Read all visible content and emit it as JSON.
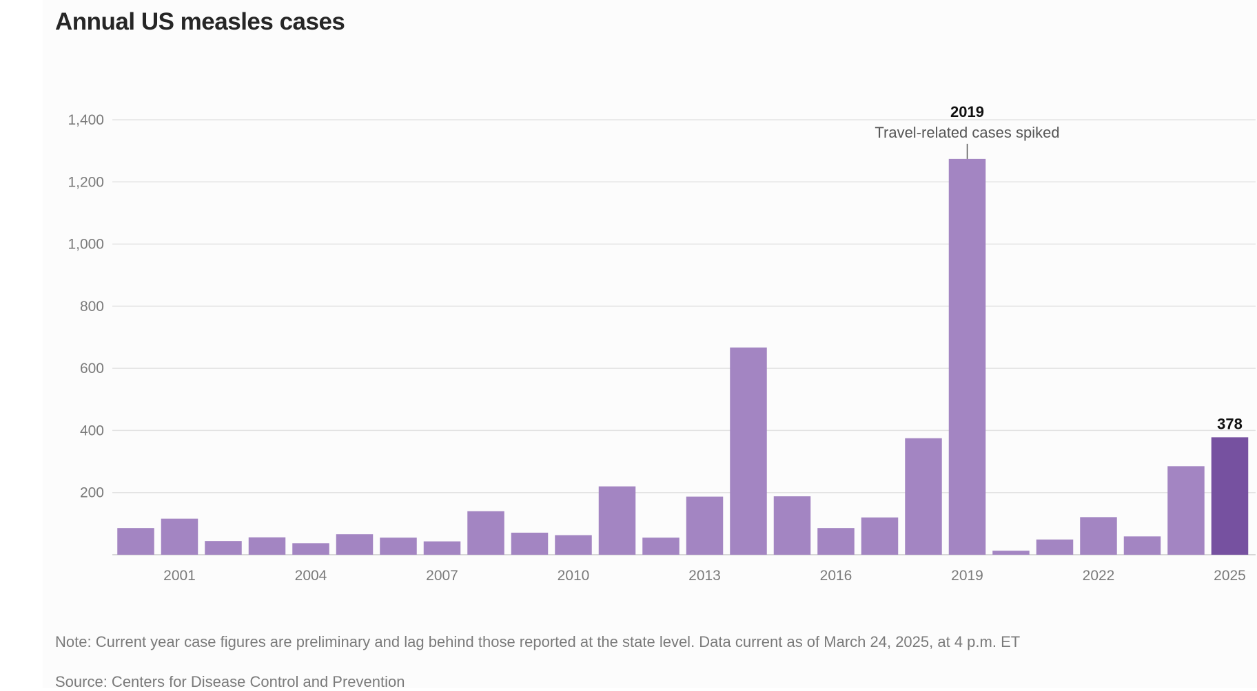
{
  "chart_data": {
    "type": "bar",
    "title": "Annual US measles cases",
    "categories": [
      "2000",
      "2001",
      "2002",
      "2003",
      "2004",
      "2005",
      "2006",
      "2007",
      "2008",
      "2009",
      "2010",
      "2011",
      "2012",
      "2013",
      "2014",
      "2015",
      "2016",
      "2017",
      "2018",
      "2019",
      "2020",
      "2021",
      "2022",
      "2023",
      "2024",
      "2025"
    ],
    "values": [
      86,
      116,
      44,
      56,
      37,
      66,
      55,
      43,
      140,
      71,
      63,
      220,
      55,
      187,
      667,
      188,
      86,
      120,
      375,
      1274,
      13,
      49,
      121,
      59,
      285,
      378
    ],
    "x_tick_labels": [
      "2001",
      "2004",
      "2007",
      "2010",
      "2013",
      "2016",
      "2019",
      "2022",
      "2025"
    ],
    "y_ticks": [
      200,
      400,
      600,
      800,
      1000,
      1200,
      1400
    ],
    "y_tick_labels": [
      "200",
      "400",
      "600",
      "800",
      "1,000",
      "1,200",
      "1,400"
    ],
    "ylim": [
      0,
      1400
    ],
    "grid": true,
    "colors": {
      "bar": "#a385c2",
      "highlight": "#7651a0"
    },
    "highlight_category": "2025",
    "data_labels": [
      {
        "category": "2025",
        "text": "378"
      }
    ],
    "annotations": [
      {
        "category": "2019",
        "title": "2019",
        "text": "Travel-related cases spiked"
      }
    ],
    "xlabel": "",
    "ylabel": ""
  },
  "footer": {
    "note": "Note: Current year case figures are preliminary and lag behind those reported at the state level. Data current as of March 24, 2025, at 4 p.m. ET",
    "source": "Source: Centers for Disease Control and Prevention"
  }
}
